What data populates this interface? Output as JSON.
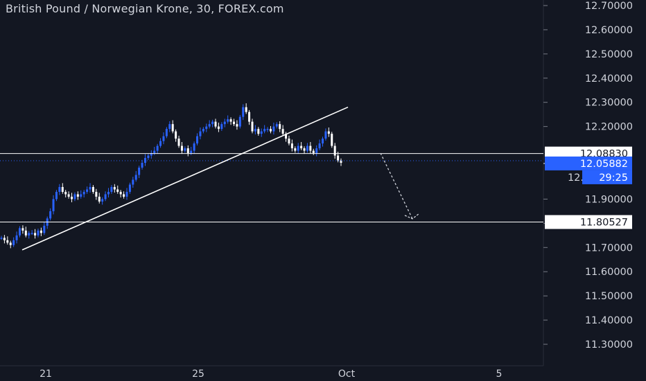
{
  "chart_data": {
    "type": "candlestick",
    "title": "British Pound / Norwegian Krone, 30, FOREX.com",
    "y_axis": {
      "ticks": [
        "12.70000",
        "12.60000",
        "12.50000",
        "12.40000",
        "12.30000",
        "12.20000",
        "11.90000",
        "11.80000",
        "11.70000",
        "11.60000",
        "11.50000",
        "11.40000",
        "11.30000"
      ],
      "ylim": [
        11.22,
        12.74
      ]
    },
    "x_axis": {
      "ticks": [
        "21",
        "25",
        "Oct",
        "5"
      ]
    },
    "price_labels": {
      "resistance": "12.08830",
      "current": "12.05882",
      "countdown": "29:25",
      "hidden_partial": "12.",
      "support": "11.80527"
    },
    "levels": [
      12.0883,
      11.80527
    ],
    "current_price": 12.05882,
    "trendline": {
      "from": [
        "Sep 20",
        11.69
      ],
      "to": [
        "Sep 30",
        12.28
      ]
    },
    "projection": {
      "from": 12.09,
      "to": 11.81
    },
    "series_path": [
      11.74,
      11.73,
      11.72,
      11.71,
      11.73,
      11.75,
      11.78,
      11.77,
      11.75,
      11.76,
      11.76,
      11.75,
      11.77,
      11.76,
      11.79,
      11.82,
      11.85,
      11.9,
      11.93,
      11.95,
      11.93,
      11.92,
      11.91,
      11.9,
      11.92,
      11.91,
      11.92,
      11.93,
      11.94,
      11.95,
      11.93,
      11.91,
      11.89,
      11.9,
      11.92,
      11.93,
      11.95,
      11.94,
      11.93,
      11.92,
      11.91,
      11.93,
      11.96,
      11.98,
      12.0,
      12.03,
      12.05,
      12.07,
      12.08,
      12.09,
      12.1,
      12.12,
      12.14,
      12.16,
      12.19,
      12.21,
      12.18,
      12.15,
      12.12,
      12.1,
      12.11,
      12.09,
      12.1,
      12.13,
      12.16,
      12.18,
      12.19,
      12.2,
      12.21,
      12.22,
      12.2,
      12.19,
      12.21,
      12.22,
      12.23,
      12.22,
      12.21,
      12.2,
      12.24,
      12.28,
      12.26,
      12.22,
      12.18,
      12.19,
      12.17,
      12.18,
      12.19,
      12.19,
      12.18,
      12.2,
      12.21,
      12.19,
      12.17,
      12.15,
      12.13,
      12.11,
      12.1,
      12.12,
      12.11,
      12.1,
      12.12,
      12.1,
      12.09,
      12.11,
      12.13,
      12.15,
      12.18,
      12.17,
      12.12,
      12.08,
      12.06,
      12.05
    ],
    "colors": {
      "background": "#131722",
      "up": "#2962ff",
      "down": "#ffffff",
      "axis_text": "#d1d4dc",
      "current_label_bg": "#2962ff",
      "lines": "#ffffff"
    }
  }
}
